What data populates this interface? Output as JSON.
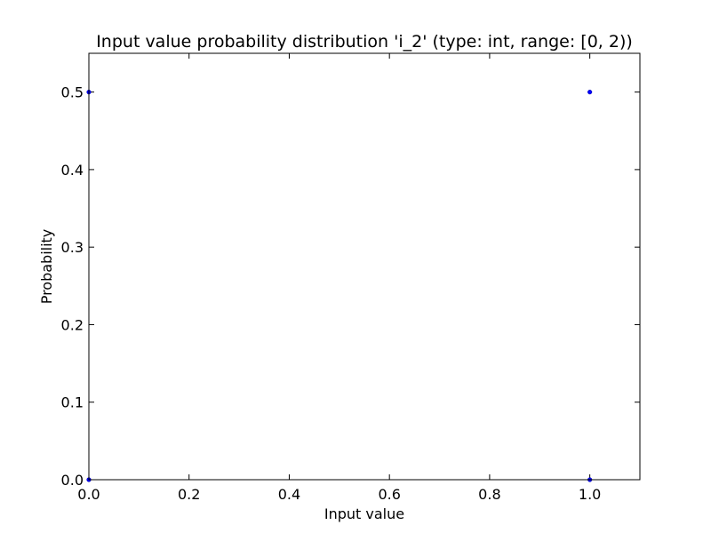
{
  "chart_data": {
    "type": "scatter",
    "title": "Input value probability distribution 'i_2' (type: int, range: [0, 2))",
    "xlabel": "Input value",
    "ylabel": "Probability",
    "xlim": [
      0,
      1.1
    ],
    "ylim": [
      0,
      0.55
    ],
    "x_ticks": [
      0.0,
      0.2,
      0.4,
      0.6,
      0.8,
      1.0
    ],
    "x_tick_labels": [
      "0.0",
      "0.2",
      "0.4",
      "0.6",
      "0.8",
      "1.0"
    ],
    "y_ticks": [
      0.0,
      0.1,
      0.2,
      0.3,
      0.4,
      0.5
    ],
    "y_tick_labels": [
      "0.0",
      "0.1",
      "0.2",
      "0.3",
      "0.4",
      "0.5"
    ],
    "grid": false,
    "series": [
      {
        "color": "#0000ff",
        "points": [
          {
            "x": 0.0,
            "y": 0.5
          },
          {
            "x": 1.0,
            "y": 0.5
          },
          {
            "x": 0.0,
            "y": 0.0
          },
          {
            "x": 1.0,
            "y": 0.0
          }
        ]
      }
    ]
  }
}
